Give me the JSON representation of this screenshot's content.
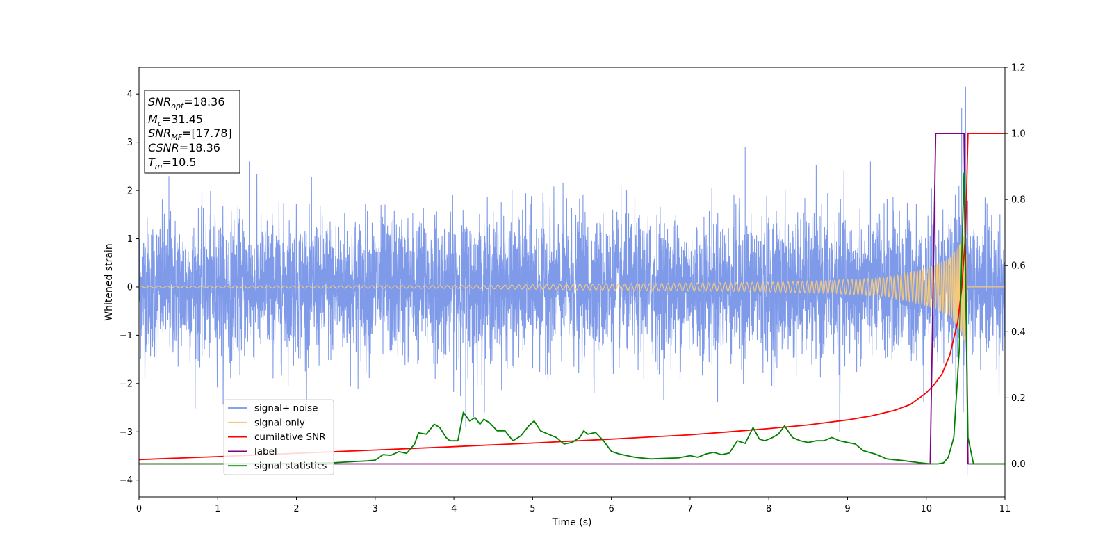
{
  "chart_data": {
    "type": "line",
    "xlabel": "Time (s)",
    "ylabel": "Whitened strain",
    "xlim": [
      0,
      11
    ],
    "ylim": [
      -4.35,
      4.55
    ],
    "y2lim": [
      -0.1,
      1.2
    ],
    "xticks": [
      0,
      1,
      2,
      3,
      4,
      5,
      6,
      7,
      8,
      9,
      10,
      11
    ],
    "yticks": [
      -4,
      -3,
      -2,
      -1,
      0,
      1,
      2,
      3,
      4
    ],
    "y2ticks": [
      "0.0",
      "0.2",
      "0.4",
      "0.6",
      "0.8",
      "1.0",
      "1.2"
    ],
    "grid": false,
    "legend_position": "lower-left",
    "annotation": {
      "lines": [
        {
          "main": "SNR",
          "sub": "opt",
          "value": "=18.36"
        },
        {
          "main": "M",
          "sub": "c",
          "value": "=31.45"
        },
        {
          "main": "SNR",
          "sub": "MF",
          "value": "=[17.78]"
        },
        {
          "main": "CSNR",
          "sub": "",
          "value": "=18.36"
        },
        {
          "main": "T",
          "sub": "m",
          "value": "=10.5"
        }
      ]
    },
    "series": [
      {
        "name": "signal+ noise",
        "color": "#7895e8",
        "axis": "left",
        "description": "dense noise band, typical amplitude about ±1.5, peaks to ±2.5, spike to 4.15 near 10.5 s",
        "notable_peaks": [
          {
            "x": 0.38,
            "y": 2.3
          },
          {
            "x": 1.4,
            "y": 2.6
          },
          {
            "x": 4.15,
            "y": -2.9
          },
          {
            "x": 4.25,
            "y": -2.7
          },
          {
            "x": 7.7,
            "y": 2.9
          },
          {
            "x": 8.9,
            "y": -3.0
          },
          {
            "x": 10.45,
            "y": 3.7
          },
          {
            "x": 10.5,
            "y": 4.15
          },
          {
            "x": 10.52,
            "y": -3.9
          }
        ]
      },
      {
        "name": "signal only",
        "color": "#f5c97a",
        "axis": "left",
        "description": "chirp oscillation growing in amplitude and frequency until merger at 10.5 s",
        "envelope": {
          "x": [
            0,
            4,
            8,
            9,
            9.5,
            10,
            10.3,
            10.45,
            10.5,
            10.52,
            11
          ],
          "amplitude": [
            0.02,
            0.03,
            0.1,
            0.15,
            0.2,
            0.38,
            0.6,
            0.95,
            1.2,
            0.0,
            0.0
          ]
        }
      },
      {
        "name": "cumilative SNR",
        "color": "#ff0000",
        "axis": "right",
        "x": [
          0,
          1,
          2,
          3,
          4,
          5,
          6,
          7,
          7.5,
          8,
          8.5,
          9,
          9.3,
          9.6,
          9.8,
          10,
          10.1,
          10.2,
          10.3,
          10.4,
          10.45,
          10.5,
          10.53,
          11
        ],
        "y": [
          0.013,
          0.022,
          0.032,
          0.042,
          0.052,
          0.063,
          0.075,
          0.088,
          0.097,
          0.107,
          0.118,
          0.133,
          0.145,
          0.162,
          0.18,
          0.215,
          0.24,
          0.272,
          0.33,
          0.43,
          0.53,
          0.7,
          1.0,
          1.0
        ]
      },
      {
        "name": "label",
        "color": "#800080",
        "axis": "right",
        "x": [
          0,
          10.05,
          10.12,
          10.48,
          10.53,
          11
        ],
        "y": [
          0,
          0,
          1,
          1,
          0,
          0
        ]
      },
      {
        "name": "signal statistics",
        "color": "#008000",
        "axis": "right",
        "x": [
          0,
          1,
          2,
          2.5,
          2.9,
          3.0,
          3.1,
          3.2,
          3.3,
          3.4,
          3.5,
          3.55,
          3.65,
          3.75,
          3.82,
          3.9,
          3.95,
          4.05,
          4.12,
          4.2,
          4.27,
          4.33,
          4.38,
          4.45,
          4.55,
          4.65,
          4.75,
          4.85,
          4.95,
          5.02,
          5.1,
          5.2,
          5.3,
          5.4,
          5.5,
          5.6,
          5.65,
          5.7,
          5.8,
          5.9,
          6.0,
          6.1,
          6.3,
          6.5,
          6.7,
          6.85,
          7.0,
          7.1,
          7.2,
          7.3,
          7.4,
          7.5,
          7.6,
          7.7,
          7.8,
          7.88,
          7.95,
          8.05,
          8.12,
          8.2,
          8.3,
          8.4,
          8.5,
          8.6,
          8.7,
          8.8,
          8.9,
          9.0,
          9.1,
          9.2,
          9.35,
          9.5,
          9.7,
          9.9,
          10.05,
          10.15,
          10.22,
          10.28,
          10.35,
          10.42,
          10.48,
          10.53,
          10.6,
          10.8,
          11
        ],
        "y": [
          0.0,
          0.0,
          0.001,
          0.004,
          0.009,
          0.011,
          0.028,
          0.026,
          0.037,
          0.032,
          0.06,
          0.094,
          0.09,
          0.12,
          0.11,
          0.08,
          0.07,
          0.07,
          0.156,
          0.13,
          0.14,
          0.12,
          0.135,
          0.125,
          0.1,
          0.1,
          0.07,
          0.085,
          0.115,
          0.13,
          0.1,
          0.09,
          0.08,
          0.06,
          0.065,
          0.08,
          0.1,
          0.09,
          0.095,
          0.07,
          0.038,
          0.03,
          0.02,
          0.015,
          0.017,
          0.018,
          0.025,
          0.02,
          0.03,
          0.035,
          0.028,
          0.033,
          0.07,
          0.062,
          0.11,
          0.075,
          0.07,
          0.08,
          0.09,
          0.115,
          0.08,
          0.07,
          0.065,
          0.07,
          0.07,
          0.08,
          0.07,
          0.065,
          0.06,
          0.04,
          0.03,
          0.015,
          0.01,
          0.004,
          0.0,
          0.0,
          0.003,
          0.02,
          0.08,
          0.35,
          0.88,
          0.08,
          0.0,
          0.0,
          0.0
        ]
      }
    ],
    "legend": [
      {
        "label": "signal+ noise",
        "color": "#7895e8"
      },
      {
        "label": "signal only",
        "color": "#f5c97a"
      },
      {
        "label": "cumilative SNR",
        "color": "#ff0000"
      },
      {
        "label": "label",
        "color": "#800080"
      },
      {
        "label": "signal statistics",
        "color": "#008000"
      }
    ]
  }
}
